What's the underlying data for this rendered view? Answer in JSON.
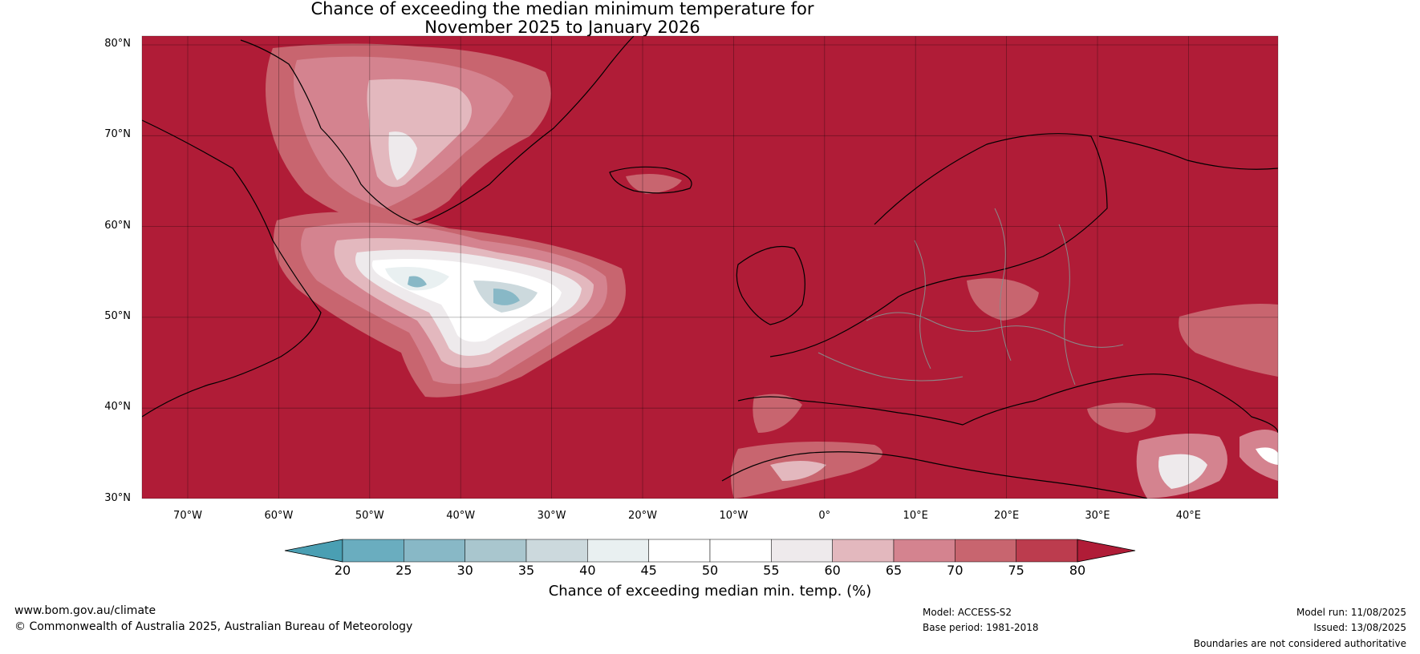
{
  "title": {
    "line1": "Chance of exceeding the median minimum temperature for",
    "line2": "November 2025 to January 2026"
  },
  "map": {
    "lat_labels": [
      "80°N",
      "70°N",
      "60°N",
      "50°N",
      "40°N",
      "30°N"
    ],
    "lon_labels": [
      "70°W",
      "60°W",
      "50°W",
      "40°W",
      "30°W",
      "20°W",
      "10°W",
      "0°",
      "10°E",
      "20°E",
      "30°E",
      "40°E"
    ],
    "background_color": "#b01c37"
  },
  "colorbar": {
    "title": "Chance of exceeding median min. temp. (%)",
    "ticks": [
      "20",
      "25",
      "30",
      "35",
      "40",
      "45",
      "50",
      "55",
      "60",
      "65",
      "70",
      "75",
      "80"
    ],
    "colors": [
      "#4a9fb3",
      "#6aadbf",
      "#88b8c6",
      "#a9c6ce",
      "#ccd9dd",
      "#e9f0f1",
      "#ffffff",
      "#ffffff",
      "#eeeaec",
      "#e3b8be",
      "#d4838f",
      "#c8656f",
      "#bc3c4e",
      "#b01c37"
    ]
  },
  "footer": {
    "site": "www.bom.gov.au/climate",
    "copyright": "© Commonwealth of Australia 2025, Australian Bureau of Meteorology",
    "model": "Model: ACCESS-S2",
    "base_period": "Base period: 1981-2018",
    "model_run": "Model run: 11/08/2025",
    "issued": "Issued: 13/08/2025",
    "disclaimer": "Boundaries are not considered authoritative"
  }
}
